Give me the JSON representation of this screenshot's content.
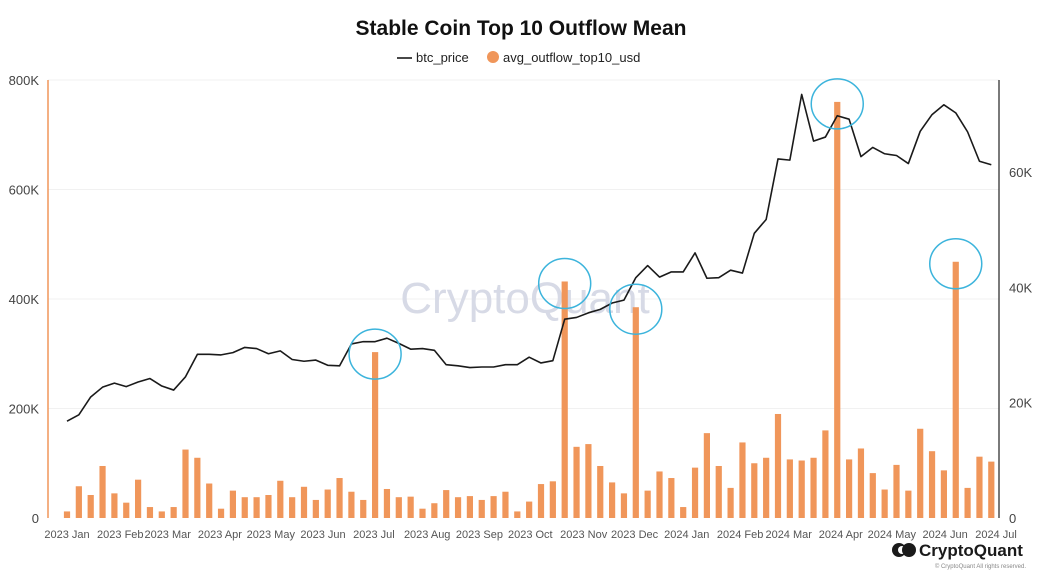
{
  "chart_data": {
    "type": "bar+line",
    "title": "Stable Coin Top 10 Outflow Mean",
    "legend": [
      {
        "name": "btc_price",
        "marker": "line",
        "color": "#1a1a1a"
      },
      {
        "name": "avg_outflow_top10_usd",
        "marker": "dot",
        "color": "#f0965a"
      }
    ],
    "left_axis": {
      "ticks": [
        0,
        200000,
        400000,
        600000,
        800000
      ],
      "tick_labels": [
        "0",
        "200K",
        "400K",
        "600K",
        "800K"
      ],
      "ylim": [
        0,
        800000
      ]
    },
    "right_axis": {
      "ticks": [
        0,
        20000,
        40000,
        60000
      ],
      "tick_labels": [
        "0",
        "20K",
        "40K",
        "60K"
      ],
      "ylim": [
        0,
        76000
      ]
    },
    "x_ticks": [
      {
        "label": "2023 Jan",
        "index": 0
      },
      {
        "label": "2023 Feb",
        "index": 4.5
      },
      {
        "label": "2023 Mar",
        "index": 8.5
      },
      {
        "label": "2023 Apr",
        "index": 12.9
      },
      {
        "label": "2023 May",
        "index": 17.2
      },
      {
        "label": "2023 Jun",
        "index": 21.6
      },
      {
        "label": "2023 Jul",
        "index": 25.9
      },
      {
        "label": "2023 Aug",
        "index": 30.4
      },
      {
        "label": "2023 Sep",
        "index": 34.8
      },
      {
        "label": "2023 Oct",
        "index": 39.1
      },
      {
        "label": "2023 Nov",
        "index": 43.6
      },
      {
        "label": "2023 Dec",
        "index": 47.9
      },
      {
        "label": "2024 Jan",
        "index": 52.3
      },
      {
        "label": "2024 Feb",
        "index": 56.8
      },
      {
        "label": "2024 Mar",
        "index": 60.9
      },
      {
        "label": "2024 Apr",
        "index": 65.3
      },
      {
        "label": "2024 May",
        "index": 69.6
      },
      {
        "label": "2024 Jun",
        "index": 74.1
      },
      {
        "label": "2024 Jul",
        "index": 78.4
      }
    ],
    "series": [
      {
        "name": "avg_outflow_top10_usd",
        "type": "bar",
        "axis": "left",
        "color": "#f0965a",
        "values": [
          12000,
          58000,
          42000,
          95000,
          45000,
          28000,
          70000,
          20000,
          12000,
          20000,
          125000,
          110000,
          63000,
          17000,
          50000,
          38000,
          38000,
          42000,
          68000,
          38000,
          57000,
          33000,
          52000,
          73000,
          48000,
          33000,
          303000,
          53000,
          38000,
          39000,
          17000,
          27000,
          51000,
          38000,
          40000,
          33000,
          40000,
          48000,
          12000,
          30000,
          62000,
          67000,
          432000,
          130000,
          135000,
          95000,
          65000,
          45000,
          385000,
          50000,
          85000,
          73000,
          20000,
          92000,
          155000,
          95000,
          55000,
          138000,
          100000,
          110000,
          190000,
          107000,
          105000,
          110000,
          160000,
          760000,
          107000,
          127000,
          82000,
          52000,
          97000,
          50000,
          163000,
          122000,
          87000,
          468000,
          55000,
          112000,
          103000
        ]
      },
      {
        "name": "btc_price",
        "type": "line",
        "axis": "right",
        "color": "#1a1a1a",
        "values": [
          16800,
          17900,
          21000,
          22700,
          23400,
          22800,
          23600,
          24200,
          22900,
          22200,
          24500,
          28400,
          28400,
          28300,
          28700,
          29600,
          29400,
          28500,
          29000,
          27500,
          27200,
          27400,
          26500,
          26400,
          30200,
          30600,
          30600,
          31200,
          30300,
          29300,
          29400,
          29100,
          26600,
          26400,
          26100,
          26200,
          26200,
          26600,
          26600,
          27900,
          26900,
          27300,
          34500,
          34800,
          35600,
          36200,
          37300,
          37800,
          41700,
          43800,
          41800,
          42700,
          42700,
          46000,
          41600,
          41700,
          43000,
          42500,
          49400,
          51800,
          62300,
          62100,
          73500,
          65400,
          66100,
          69800,
          69200,
          62700,
          64300,
          63200,
          62900,
          61500,
          67100,
          70000,
          71700,
          70300,
          67000,
          61900,
          61300
        ]
      }
    ],
    "annotations": [
      {
        "type": "circle",
        "target_index": 26,
        "series": "avg_outflow_top10_usd"
      },
      {
        "type": "circle",
        "target_index": 42,
        "series": "avg_outflow_top10_usd"
      },
      {
        "type": "circle",
        "target_index": 48,
        "series": "avg_outflow_top10_usd"
      },
      {
        "type": "circle",
        "target_index": 65,
        "series": "avg_outflow_top10_usd"
      },
      {
        "type": "circle",
        "target_index": 75,
        "series": "avg_outflow_top10_usd"
      }
    ],
    "annotation_color": "#3cb4dc",
    "grid": true
  },
  "watermark": "CryptoQuant",
  "branding": {
    "name": "CryptoQuant",
    "copyright": "© CryptoQuant All rights reserved."
  }
}
